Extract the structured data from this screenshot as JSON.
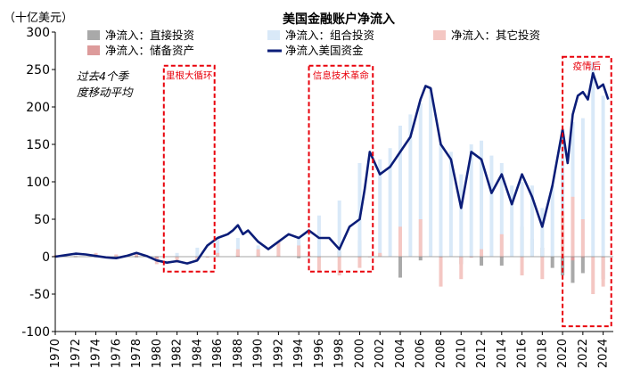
{
  "chart_data": {
    "type": "bar",
    "title": "美国金融账户净流入",
    "ylabel": "（十亿美元）",
    "note": [
      "过去4个季",
      "度移动平均"
    ],
    "ylim": [
      -100,
      300
    ],
    "yticks": [
      -100,
      -50,
      0,
      50,
      100,
      150,
      200,
      250,
      300
    ],
    "xlim": [
      1970,
      2025
    ],
    "xticks": [
      "1970",
      "1972",
      "1974",
      "1976",
      "1978",
      "1980",
      "1982",
      "1984",
      "1986",
      "1988",
      "1990",
      "1992",
      "1994",
      "1996",
      "1998",
      "2000",
      "2002",
      "2004",
      "2006",
      "2008",
      "2010",
      "2012",
      "2014",
      "2016",
      "2018",
      "2020",
      "2022",
      "2024"
    ],
    "legend_position": "top",
    "series": [
      {
        "name": "净流入：直接投资",
        "kind": "bar",
        "color": "#a9a9a9",
        "x": [
          1970,
          1972,
          1974,
          1976,
          1978,
          1980,
          1982,
          1984,
          1986,
          1988,
          1990,
          1992,
          1994,
          1996,
          1998,
          2000,
          2002,
          2004,
          2006,
          2008,
          2010,
          2012,
          2014,
          2016,
          2017,
          2018,
          2019,
          2020,
          2021,
          2022,
          2024
        ],
        "values": [
          0,
          0,
          -1,
          -1,
          -1,
          -2,
          -3,
          -3,
          1,
          5,
          5,
          2,
          -2,
          0,
          8,
          22,
          3,
          -28,
          -5,
          6,
          -10,
          -12,
          -12,
          40,
          24,
          12,
          -15,
          -25,
          -35,
          -22,
          -30
        ]
      },
      {
        "name": "净流入：组合投资",
        "kind": "bar",
        "color": "#d9e9f8",
        "x": [
          1970,
          1972,
          1974,
          1976,
          1978,
          1980,
          1982,
          1984,
          1986,
          1988,
          1990,
          1992,
          1994,
          1996,
          1998,
          2000,
          2002,
          2003,
          2004,
          2005,
          2006,
          2007,
          2008,
          2009,
          2010,
          2011,
          2012,
          2013,
          2014,
          2015,
          2016,
          2017,
          2018,
          2019,
          2020,
          2021,
          2022,
          2023,
          2024
        ],
        "values": [
          1,
          3,
          2,
          2,
          3,
          1,
          5,
          12,
          25,
          25,
          15,
          20,
          25,
          55,
          75,
          125,
          130,
          145,
          175,
          190,
          205,
          225,
          150,
          140,
          110,
          150,
          155,
          135,
          125,
          95,
          100,
          95,
          65,
          95,
          150,
          180,
          185,
          260,
          215
        ]
      },
      {
        "name": "净流入：其它投资",
        "kind": "bar",
        "color": "#f4c7c3",
        "x": [
          1970,
          1972,
          1974,
          1976,
          1978,
          1980,
          1982,
          1984,
          1986,
          1988,
          1990,
          1992,
          1994,
          1996,
          1998,
          2000,
          2002,
          2004,
          2006,
          2008,
          2010,
          2012,
          2014,
          2016,
          2018,
          2020,
          2021,
          2022,
          2023,
          2024
        ],
        "values": [
          2,
          1,
          5,
          3,
          5,
          -10,
          -8,
          -5,
          5,
          10,
          10,
          20,
          15,
          -20,
          -25,
          -15,
          5,
          40,
          50,
          -40,
          -30,
          10,
          30,
          -25,
          -30,
          60,
          80,
          50,
          -50,
          -40
        ]
      },
      {
        "name": "净流入：储备资产",
        "kind": "bar",
        "color": "#dd9b9b",
        "x": [
          1970,
          1974,
          1978,
          1980,
          1985,
          1988,
          1995,
          2001,
          2008,
          2011,
          2014,
          2020,
          2021,
          2022,
          2024
        ],
        "values": [
          1,
          1,
          1,
          -2,
          -1,
          1,
          1,
          0,
          0,
          -1,
          0,
          -1,
          -5,
          -1,
          0
        ]
      },
      {
        "name": "净流入美国资金",
        "kind": "line",
        "color": "#0b1d78",
        "x": [
          1970,
          1971,
          1972,
          1973,
          1974,
          1975,
          1976,
          1977,
          1978,
          1979,
          1980,
          1981,
          1982,
          1983,
          1984,
          1985,
          1986,
          1987,
          1987.5,
          1988,
          1988.5,
          1989,
          1990,
          1991,
          1992,
          1993,
          1994,
          1995,
          1996,
          1997,
          1998,
          1999,
          2000,
          2000.5,
          2001,
          2002,
          2003,
          2004,
          2005,
          2006,
          2006.5,
          2007,
          2008,
          2009,
          2010,
          2011,
          2012,
          2013,
          2014,
          2015,
          2016,
          2017,
          2018,
          2019,
          2020,
          2020.5,
          2021,
          2021.5,
          2022,
          2022.5,
          2023,
          2023.5,
          2024,
          2024.5
        ],
        "values": [
          0,
          2,
          4,
          3,
          1,
          -1,
          -2,
          1,
          5,
          1,
          -5,
          -8,
          -6,
          -9,
          -5,
          15,
          25,
          30,
          35,
          42,
          30,
          35,
          20,
          10,
          20,
          30,
          25,
          35,
          25,
          25,
          10,
          40,
          50,
          90,
          140,
          110,
          120,
          140,
          160,
          210,
          228,
          225,
          150,
          130,
          65,
          140,
          130,
          85,
          110,
          70,
          110,
          80,
          40,
          95,
          170,
          125,
          190,
          215,
          220,
          210,
          245,
          225,
          230,
          210
        ]
      }
    ],
    "annotations": [
      {
        "label": "里根大循环",
        "x0": 1980.7,
        "x1": 1985.7,
        "y0": -20,
        "y1": 255
      },
      {
        "label": "信息技术革命",
        "x0": 1995.0,
        "x1": 2001.3,
        "y0": -20,
        "y1": 255
      },
      {
        "label": "疫情后",
        "x0": 2020.0,
        "x1": 2024.8,
        "y0": -93,
        "y1": 267
      }
    ]
  }
}
